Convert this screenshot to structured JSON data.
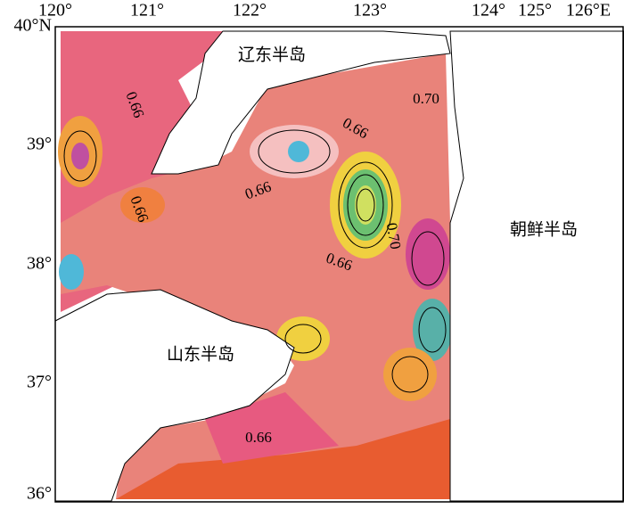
{
  "map": {
    "lon_labels": [
      "120°",
      "121°",
      "122°",
      "123°",
      "124°",
      "125°",
      "126°E"
    ],
    "lat_labels": [
      "40°N",
      "39°",
      "38°",
      "37°",
      "36°"
    ],
    "places": [
      "辽东半岛",
      "山东半岛",
      "朝鲜半岛"
    ],
    "contour_labels": [
      "0.66",
      "0.70",
      "0.66",
      "0.66",
      "0.66",
      "0.66",
      "0.66",
      "0.70"
    ]
  }
}
